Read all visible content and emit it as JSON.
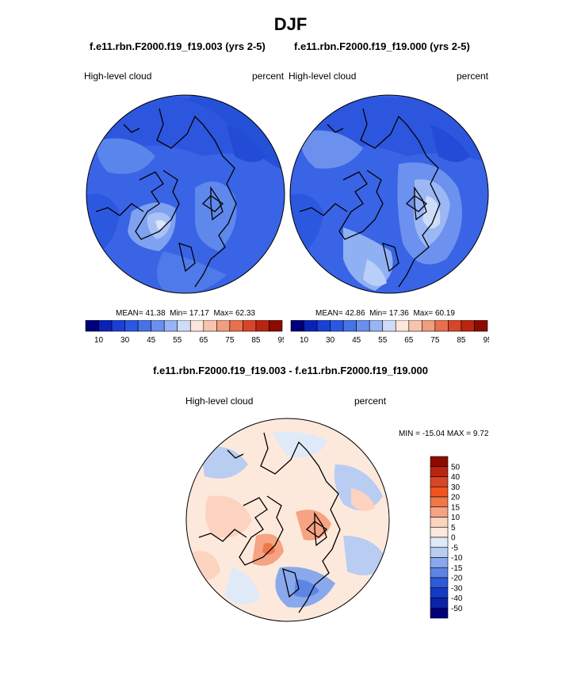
{
  "title": "DJF",
  "panel_left": {
    "case": "f.e11.rbn.F2000.f19_f19.003 (yrs 2-5)",
    "variable": "High-level cloud",
    "units": "percent",
    "mean_label": "MEAN=",
    "mean": "41.38",
    "min_label": "Min=",
    "min": "17.17",
    "max_label": "Max=",
    "max": "62.33"
  },
  "panel_right": {
    "case": "f.e11.rbn.F2000.f19_f19.000 (yrs 2-5)",
    "variable": "High-level cloud",
    "units": "percent",
    "mean_label": "MEAN=",
    "mean": "42.86",
    "min_label": "Min=",
    "min": "17.36",
    "max_label": "Max=",
    "max": "60.19"
  },
  "colorbar_ticks": [
    "10",
    "30",
    "45",
    "55",
    "65",
    "75",
    "85",
    "95"
  ],
  "colorbar_colors": [
    "#00007a",
    "#0a22b8",
    "#1b40d6",
    "#2a58e3",
    "#4773e8",
    "#6b8fee",
    "#98b4f4",
    "#cfdcf8",
    "#fde6dc",
    "#f7c4ae",
    "#f09d80",
    "#e7704f",
    "#d84628",
    "#b8260f",
    "#8c0b00"
  ],
  "difference": {
    "title": "f.e11.rbn.F2000.f19_f19.003 - f.e11.rbn.F2000.f19_f19.000",
    "variable": "High-level cloud",
    "units": "percent",
    "minmax": "MIN = -15.04 MAX =   9.72",
    "ticks": [
      "50",
      "40",
      "30",
      "20",
      "15",
      "10",
      "5",
      "0",
      "-5",
      "-10",
      "-15",
      "-20",
      "-30",
      "-40",
      "-50"
    ],
    "colors": [
      "#8c0b00",
      "#b8260f",
      "#d84628",
      "#f25420",
      "#f07848",
      "#f5a383",
      "#fbd3bf",
      "#fde9dc",
      "#dfe9f8",
      "#b9cdf2",
      "#8aa9ec",
      "#5d85e3",
      "#2d5ad8",
      "#153bc6",
      "#0a24a8",
      "#00007a"
    ]
  }
}
